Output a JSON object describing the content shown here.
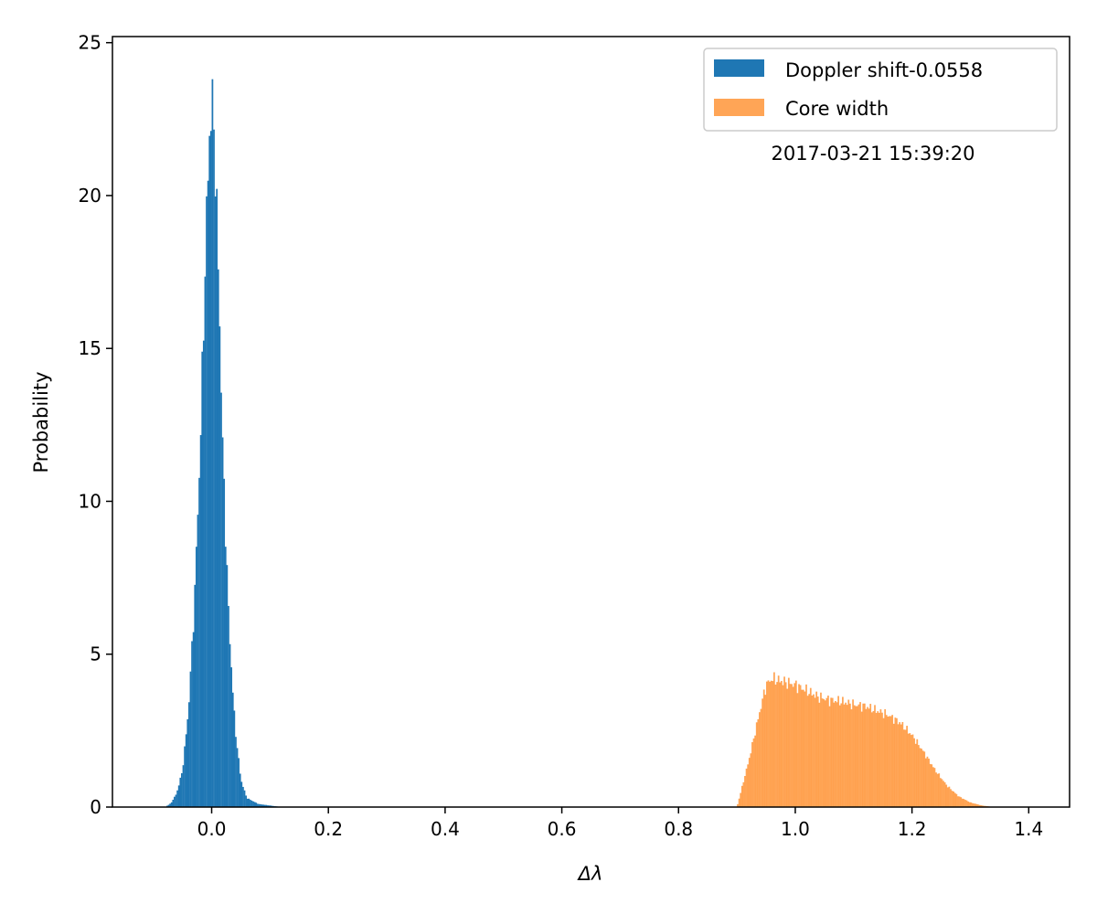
{
  "chart_data": {
    "type": "histogram",
    "xlabel": "Δλ",
    "ylabel": "Probability",
    "xlim": [
      -0.17,
      1.47
    ],
    "ylim": [
      0,
      25.2
    ],
    "xticks": [
      0.0,
      0.2,
      0.4,
      0.6,
      0.8,
      1.0,
      1.2,
      1.4
    ],
    "xtick_labels": [
      "0.0",
      "0.2",
      "0.4",
      "0.6",
      "0.8",
      "1.0",
      "1.2",
      "1.4"
    ],
    "yticks": [
      0,
      5,
      10,
      15,
      20,
      25
    ],
    "ytick_labels": [
      "0",
      "5",
      "10",
      "15",
      "20",
      "25"
    ],
    "grid": false,
    "legend_position": "top-right",
    "annotation": "2017-03-21 15:39:20",
    "series": [
      {
        "name": "Doppler shift-0.0558",
        "color": "#1f77b4",
        "opacity": 1.0,
        "x": [
          -0.08,
          -0.07,
          -0.06,
          -0.05,
          -0.04,
          -0.03,
          -0.02,
          -0.015,
          -0.01,
          -0.005,
          0.0,
          0.005,
          0.01,
          0.015,
          0.02,
          0.03,
          0.04,
          0.05,
          0.06,
          0.08,
          0.1,
          0.12
        ],
        "y": [
          0.0,
          0.12,
          0.45,
          1.2,
          3.1,
          6.5,
          11.5,
          15.0,
          18.5,
          21.5,
          23.2,
          21.8,
          18.6,
          14.8,
          11.0,
          5.8,
          2.6,
          0.9,
          0.3,
          0.1,
          0.05,
          0.0
        ]
      },
      {
        "name": "Core width",
        "color": "#ff7f0e",
        "opacity": 0.7,
        "x": [
          0.9,
          0.92,
          0.94,
          0.95,
          0.96,
          0.98,
          1.0,
          1.02,
          1.04,
          1.06,
          1.08,
          1.1,
          1.12,
          1.14,
          1.16,
          1.18,
          1.2,
          1.22,
          1.24,
          1.26,
          1.28,
          1.3,
          1.32,
          1.34
        ],
        "y": [
          0.0,
          1.5,
          3.2,
          4.0,
          4.2,
          4.1,
          4.0,
          3.8,
          3.6,
          3.5,
          3.45,
          3.35,
          3.3,
          3.15,
          3.0,
          2.75,
          2.35,
          1.8,
          1.2,
          0.7,
          0.35,
          0.15,
          0.05,
          0.0
        ]
      }
    ]
  }
}
